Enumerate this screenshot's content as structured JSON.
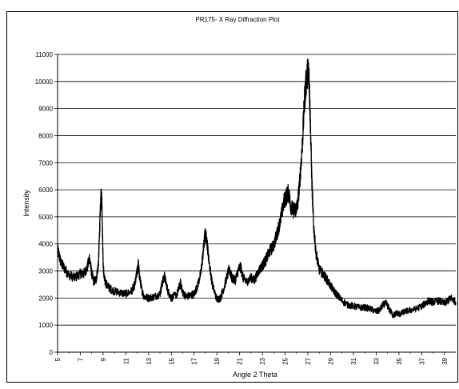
{
  "chart_data": {
    "type": "line",
    "title": "PR175- X Ray Diffraction Plot",
    "xlabel": "Angle 2 Theta",
    "ylabel": "Intensity",
    "xlim": [
      5,
      40
    ],
    "ylim": [
      0,
      11000
    ],
    "x_ticks": [
      5,
      7,
      9,
      11,
      13,
      15,
      17,
      19,
      21,
      23,
      25,
      27,
      29,
      31,
      33,
      35,
      37,
      39
    ],
    "y_ticks": [
      0,
      1000,
      2000,
      3000,
      4000,
      5000,
      6000,
      7000,
      8000,
      9000,
      10000,
      11000
    ],
    "grid": "horizontal major gridlines",
    "legend": "none",
    "line_color": "#000000",
    "series": [
      {
        "x": [
          5.0,
          5.3,
          5.6,
          6.0,
          6.5,
          7.0,
          7.3,
          7.6,
          7.8,
          8.0,
          8.2,
          8.4,
          8.6,
          8.7,
          8.8,
          8.85,
          8.9,
          9.0,
          9.1,
          9.3,
          9.6,
          10.0,
          10.5,
          11.0,
          11.5,
          11.8,
          12.0,
          12.1,
          12.2,
          12.4,
          12.6,
          13.0,
          13.5,
          14.0,
          14.2,
          14.4,
          14.7,
          15.0,
          15.5,
          15.8,
          16.0,
          16.3,
          16.7,
          17.0,
          17.3,
          17.6,
          17.8,
          17.95,
          18.1,
          18.3,
          18.6,
          19.0,
          19.3,
          19.6,
          19.9,
          20.1,
          20.3,
          20.6,
          20.9,
          21.1,
          21.3,
          21.6,
          22.0,
          22.3,
          22.6,
          23.0,
          23.3,
          23.6,
          24.0,
          24.3,
          24.6,
          24.9,
          25.1,
          25.3,
          25.5,
          25.7,
          25.9,
          26.1,
          26.3,
          26.5,
          26.7,
          26.85,
          27.0,
          27.1,
          27.2,
          27.35,
          27.5,
          27.7,
          28.0,
          28.4,
          28.8,
          29.2,
          29.6,
          30.0,
          30.5,
          31.0,
          31.5,
          32.0,
          32.5,
          33.0,
          33.3,
          33.6,
          33.9,
          34.2,
          34.5,
          34.8,
          35.1,
          35.5,
          36.0,
          36.5,
          37.0,
          37.3,
          37.6,
          38.0,
          38.5,
          39.0,
          39.3,
          39.6,
          40.0
        ],
        "y": [
          3800,
          3300,
          3100,
          2850,
          2750,
          2900,
          2900,
          3100,
          3500,
          2900,
          2600,
          2700,
          3300,
          4600,
          5650,
          5800,
          5500,
          3300,
          2700,
          2500,
          2350,
          2250,
          2200,
          2150,
          2250,
          2500,
          3000,
          3250,
          2800,
          2300,
          2050,
          2000,
          2050,
          2150,
          2550,
          2800,
          2250,
          2000,
          2150,
          2550,
          2200,
          2050,
          2100,
          2150,
          2450,
          2950,
          3700,
          4350,
          4200,
          3400,
          2500,
          1950,
          2000,
          2350,
          2800,
          3100,
          2750,
          2650,
          3050,
          3150,
          2750,
          2600,
          2750,
          2650,
          2950,
          3200,
          3400,
          3700,
          3950,
          4400,
          4900,
          5550,
          5750,
          5900,
          5400,
          5250,
          5250,
          5450,
          6400,
          7600,
          9300,
          10000,
          10400,
          10200,
          8800,
          6300,
          4700,
          3700,
          3050,
          2850,
          2600,
          2300,
          2100,
          1900,
          1750,
          1700,
          1650,
          1650,
          1600,
          1500,
          1550,
          1750,
          1800,
          1550,
          1350,
          1450,
          1400,
          1500,
          1550,
          1600,
          1700,
          1800,
          1900,
          1850,
          1900,
          1800,
          1900,
          2000,
          1850
        ]
      }
    ]
  }
}
